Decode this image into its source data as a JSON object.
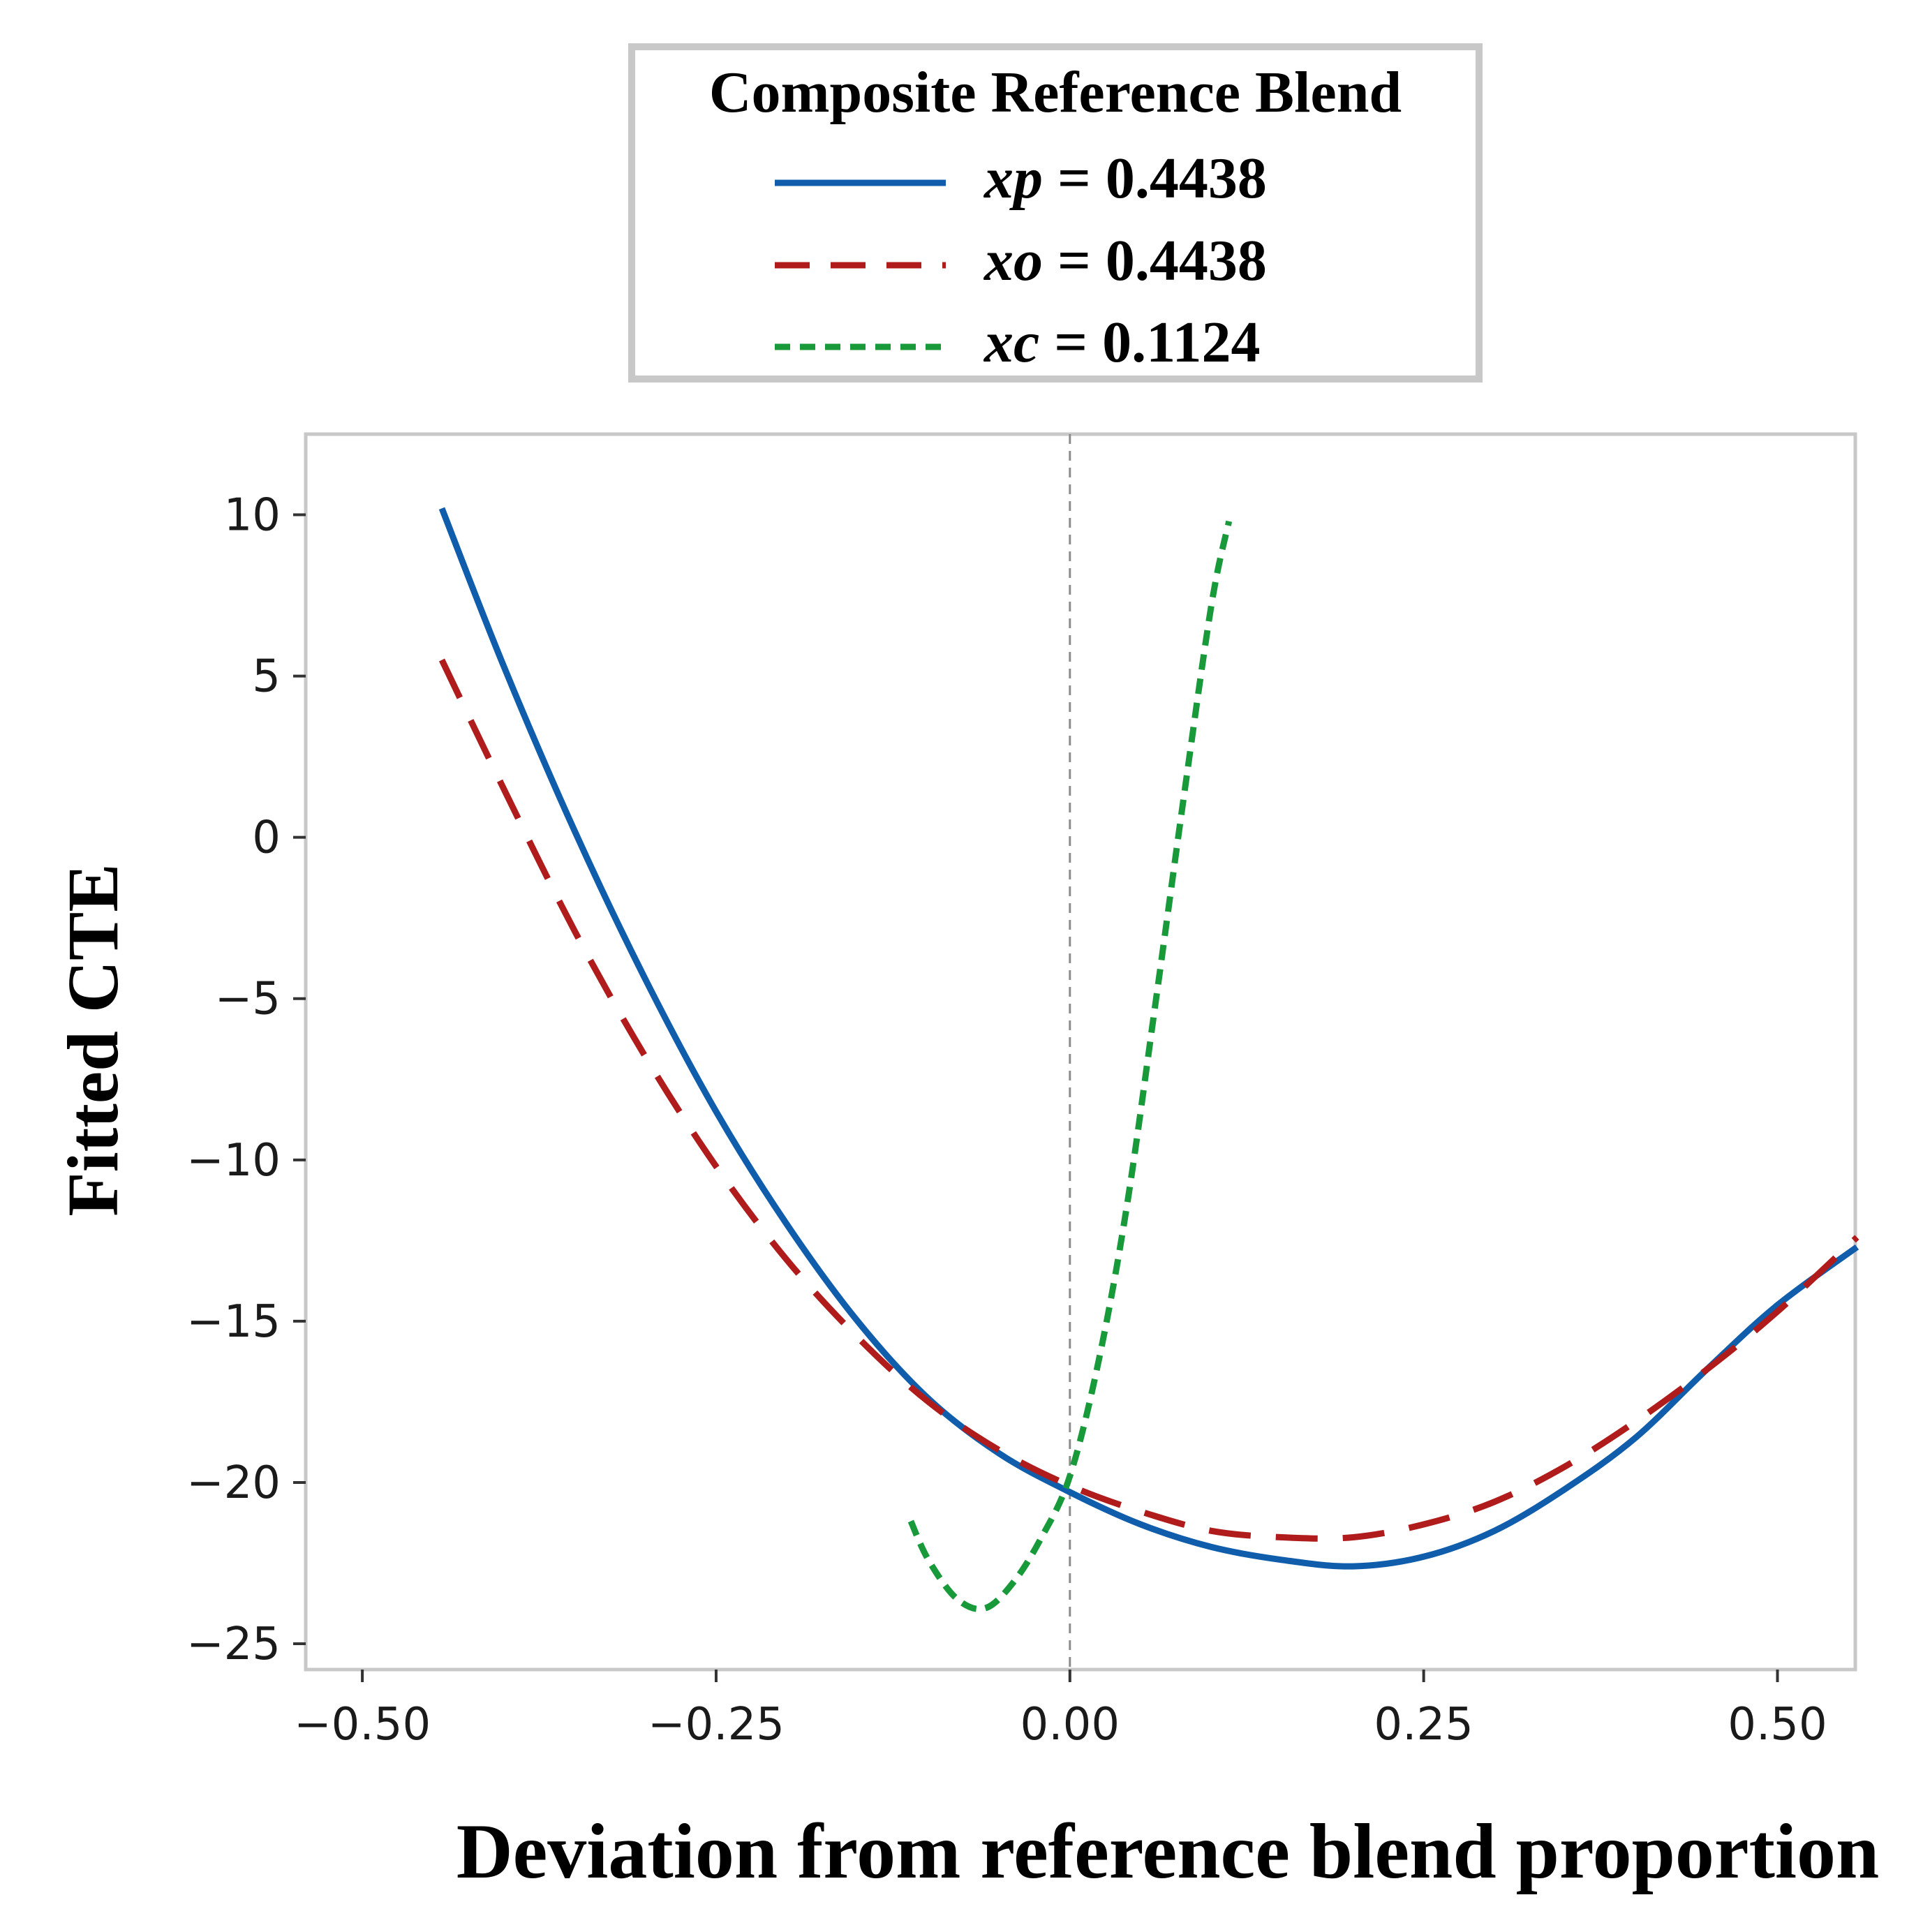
{
  "legend": {
    "title": "Composite Reference Blend",
    "entries": [
      {
        "var": "xp",
        "value": "= 0.4438"
      },
      {
        "var": "xo",
        "value": "= 0.4438"
      },
      {
        "var": "xc",
        "value": "= 0.1124"
      }
    ]
  },
  "chart_data": {
    "type": "line",
    "title": "",
    "xlabel": "Deviation from reference blend proportion",
    "ylabel": "Fitted CTE",
    "xlim": [
      -0.54,
      0.555
    ],
    "ylim": [
      -25.8,
      12.5
    ],
    "xticks": [
      -0.5,
      -0.25,
      0.0,
      0.25,
      0.5
    ],
    "xtick_labels": [
      "−0.50",
      "−0.25",
      "0.00",
      "0.25",
      "0.50"
    ],
    "yticks": [
      10,
      5,
      0,
      -5,
      -10,
      -15,
      -20,
      -25
    ],
    "ytick_labels": [
      "10",
      "5",
      "0",
      "−5",
      "−10",
      "−15",
      "−20",
      "−25"
    ],
    "reference_line_x": 0.0,
    "series": [
      {
        "name": "xp = 0.4438",
        "color": "#0f5dab",
        "style": "solid",
        "x": [
          -0.4438,
          -0.4,
          -0.35,
          -0.3,
          -0.25,
          -0.2,
          -0.15,
          -0.1,
          -0.05,
          0.0,
          0.05,
          0.1,
          0.15,
          0.2,
          0.25,
          0.3,
          0.35,
          0.4,
          0.45,
          0.5,
          0.5562
        ],
        "y": [
          10.2,
          5.3,
          0.2,
          -4.4,
          -8.5,
          -12.0,
          -15.0,
          -17.4,
          -19.1,
          -20.3,
          -21.3,
          -22.0,
          -22.4,
          -22.6,
          -22.3,
          -21.5,
          -20.2,
          -18.6,
          -16.5,
          -14.5,
          -12.7
        ]
      },
      {
        "name": "xo = 0.4438",
        "color": "#b01c1c",
        "style": "dashed",
        "x": [
          -0.4438,
          -0.4,
          -0.35,
          -0.3,
          -0.25,
          -0.2,
          -0.15,
          -0.1,
          -0.05,
          0.0,
          0.05,
          0.1,
          0.15,
          0.2,
          0.25,
          0.3,
          0.35,
          0.4,
          0.45,
          0.5,
          0.5562
        ],
        "y": [
          5.5,
          1.5,
          -2.9,
          -6.8,
          -10.2,
          -13.1,
          -15.5,
          -17.5,
          -19.0,
          -20.1,
          -20.9,
          -21.5,
          -21.7,
          -21.7,
          -21.3,
          -20.6,
          -19.5,
          -18.1,
          -16.5,
          -14.7,
          -12.4
        ]
      },
      {
        "name": "xc = 0.1124",
        "color": "#199a3a",
        "style": "dotted",
        "x": [
          -0.1124,
          -0.1,
          -0.08,
          -0.06,
          -0.04,
          -0.02,
          0.0,
          0.02,
          0.04,
          0.06,
          0.08,
          0.1,
          0.1124
        ],
        "y": [
          -21.2,
          -22.4,
          -23.6,
          -23.9,
          -23.1,
          -21.7,
          -19.8,
          -16.3,
          -11.5,
          -5.3,
          1.1,
          7.2,
          9.8
        ]
      }
    ]
  }
}
